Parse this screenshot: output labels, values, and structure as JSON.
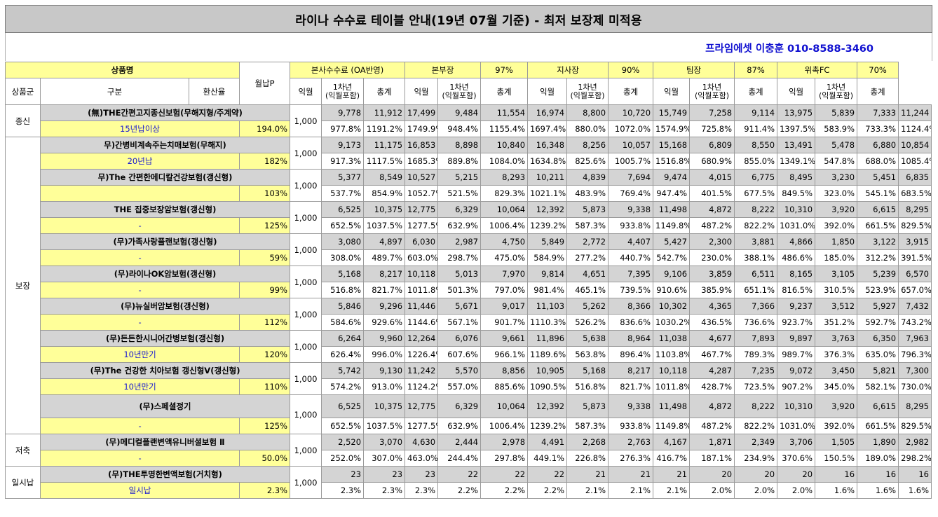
{
  "title": "라이나 수수료 테이블 안내(19년 07월 기준) - 최저 보장제 미적용",
  "contact": "프라임에셋 이충훈 010-8588-3460",
  "header": {
    "product_name": "상품명",
    "monthly": "월납P",
    "group_label": "상품군",
    "category": "구분",
    "conversion": "환산율",
    "groups": [
      {
        "name": "본사수수료 (OA반영)",
        "pct": ""
      },
      {
        "name": "본부장",
        "pct": "97%"
      },
      {
        "name": "지사장",
        "pct": "90%"
      },
      {
        "name": "팀장",
        "pct": "87%"
      },
      {
        "name": "위촉FC",
        "pct": "70%"
      }
    ],
    "sub": {
      "a": "익월",
      "b1": "1차년",
      "b2": "(익월포함)",
      "c": "총계"
    }
  },
  "rows": [
    {
      "group": "종신",
      "name": "(無)THE간편고지종신보험(무해지형/주계약)",
      "cat": "15년납이상",
      "rate": "194.0%",
      "monthly": "1,000",
      "vals": [
        "9,778",
        "11,912",
        "17,499",
        "9,484",
        "11,554",
        "16,974",
        "8,800",
        "10,720",
        "15,749",
        "7,258",
        "9,114",
        "13,975",
        "5,839",
        "7,333",
        "11,244"
      ],
      "pcts": [
        "977.8%",
        "1191.2%",
        "1749.9%",
        "948.4%",
        "1155.4%",
        "1697.4%",
        "880.0%",
        "1072.0%",
        "1574.9%",
        "725.8%",
        "911.4%",
        "1397.5%",
        "583.9%",
        "733.3%",
        "1124.4%"
      ]
    },
    {
      "group": "보장",
      "name": "무)간병비계속주는치매보험(무해지)",
      "cat": "20년납",
      "rate": "182%",
      "monthly": "1,000",
      "vals": [
        "9,173",
        "11,175",
        "16,853",
        "8,898",
        "10,840",
        "16,348",
        "8,256",
        "10,057",
        "15,168",
        "6,809",
        "8,550",
        "13,491",
        "5,478",
        "6,880",
        "10,854"
      ],
      "pcts": [
        "917.3%",
        "1117.5%",
        "1685.3%",
        "889.8%",
        "1084.0%",
        "1634.8%",
        "825.6%",
        "1005.7%",
        "1516.8%",
        "680.9%",
        "855.0%",
        "1349.1%",
        "547.8%",
        "688.0%",
        "1085.4%"
      ]
    },
    {
      "group": "",
      "name": "무)The 간편한메디칼건강보험(갱신형)",
      "cat": "",
      "rate": "103%",
      "monthly": "1,000",
      "vals": [
        "5,377",
        "8,549",
        "10,527",
        "5,215",
        "8,293",
        "10,211",
        "4,839",
        "7,694",
        "9,474",
        "4,015",
        "6,775",
        "8,495",
        "3,230",
        "5,451",
        "6,835"
      ],
      "pcts": [
        "537.7%",
        "854.9%",
        "1052.7%",
        "521.5%",
        "829.3%",
        "1021.1%",
        "483.9%",
        "769.4%",
        "947.4%",
        "401.5%",
        "677.5%",
        "849.5%",
        "323.0%",
        "545.1%",
        "683.5%"
      ]
    },
    {
      "group": "",
      "name": "THE 집중보장암보험(갱신형)",
      "cat": "-",
      "rate": "125%",
      "monthly": "1,000",
      "vals": [
        "6,525",
        "10,375",
        "12,775",
        "6,329",
        "10,064",
        "12,392",
        "5,873",
        "9,338",
        "11,498",
        "4,872",
        "8,222",
        "10,310",
        "3,920",
        "6,615",
        "8,295"
      ],
      "pcts": [
        "652.5%",
        "1037.5%",
        "1277.5%",
        "632.9%",
        "1006.4%",
        "1239.2%",
        "587.3%",
        "933.8%",
        "1149.8%",
        "487.2%",
        "822.2%",
        "1031.0%",
        "392.0%",
        "661.5%",
        "829.5%"
      ]
    },
    {
      "group": "",
      "name": "(무)가족사랑플랜보험(갱신형)",
      "cat": "-",
      "rate": "59%",
      "monthly": "1,000",
      "vals": [
        "3,080",
        "4,897",
        "6,030",
        "2,987",
        "4,750",
        "5,849",
        "2,772",
        "4,407",
        "5,427",
        "2,300",
        "3,881",
        "4,866",
        "1,850",
        "3,122",
        "3,915"
      ],
      "pcts": [
        "308.0%",
        "489.7%",
        "603.0%",
        "298.7%",
        "475.0%",
        "584.9%",
        "277.2%",
        "440.7%",
        "542.7%",
        "230.0%",
        "388.1%",
        "486.6%",
        "185.0%",
        "312.2%",
        "391.5%"
      ]
    },
    {
      "group": "",
      "name": "(무)라이나OK암보험(갱신형)",
      "cat": "-",
      "rate": "99%",
      "monthly": "1,000",
      "vals": [
        "5,168",
        "8,217",
        "10,118",
        "5,013",
        "7,970",
        "9,814",
        "4,651",
        "7,395",
        "9,106",
        "3,859",
        "6,511",
        "8,165",
        "3,105",
        "5,239",
        "6,570"
      ],
      "pcts": [
        "516.8%",
        "821.7%",
        "1011.8%",
        "501.3%",
        "797.0%",
        "981.4%",
        "465.1%",
        "739.5%",
        "910.6%",
        "385.9%",
        "651.1%",
        "816.5%",
        "310.5%",
        "523.9%",
        "657.0%"
      ]
    },
    {
      "group": "",
      "name": "(무)뉴실버암보험(갱신형)",
      "cat": "-",
      "rate": "112%",
      "monthly": "1,000",
      "vals": [
        "5,846",
        "9,296",
        "11,446",
        "5,671",
        "9,017",
        "11,103",
        "5,262",
        "8,366",
        "10,302",
        "4,365",
        "7,366",
        "9,237",
        "3,512",
        "5,927",
        "7,432"
      ],
      "pcts": [
        "584.6%",
        "929.6%",
        "1144.6%",
        "567.1%",
        "901.7%",
        "1110.3%",
        "526.2%",
        "836.6%",
        "1030.2%",
        "436.5%",
        "736.6%",
        "923.7%",
        "351.2%",
        "592.7%",
        "743.2%"
      ]
    },
    {
      "group": "",
      "name": "(무)든든한시니어간병보험(갱신형)",
      "cat": "10년만기",
      "rate": "120%",
      "monthly": "1,000",
      "vals": [
        "6,264",
        "9,960",
        "12,264",
        "6,076",
        "9,661",
        "11,896",
        "5,638",
        "8,964",
        "11,038",
        "4,677",
        "7,893",
        "9,897",
        "3,763",
        "6,350",
        "7,963"
      ],
      "pcts": [
        "626.4%",
        "996.0%",
        "1226.4%",
        "607.6%",
        "966.1%",
        "1189.6%",
        "563.8%",
        "896.4%",
        "1103.8%",
        "467.7%",
        "789.3%",
        "989.7%",
        "376.3%",
        "635.0%",
        "796.3%"
      ]
    },
    {
      "group": "",
      "name": "(무)The 건강한 치아보험 갱신형V(갱신형)",
      "cat": "10년만기",
      "rate": "110%",
      "monthly": "1,000",
      "vals": [
        "5,742",
        "9,130",
        "11,242",
        "5,570",
        "8,856",
        "10,905",
        "5,168",
        "8,217",
        "10,118",
        "4,287",
        "7,235",
        "9,072",
        "3,450",
        "5,821",
        "7,300"
      ],
      "pcts": [
        "574.2%",
        "913.0%",
        "1124.2%",
        "557.0%",
        "885.6%",
        "1090.5%",
        "516.8%",
        "821.7%",
        "1011.8%",
        "428.7%",
        "723.5%",
        "907.2%",
        "345.0%",
        "582.1%",
        "730.0%"
      ]
    },
    {
      "group": "",
      "name": "(무)스페셜정기",
      "cat": "-",
      "rate": "125%",
      "monthly": "1,000",
      "vals": [
        "6,525",
        "10,375",
        "12,775",
        "6,329",
        "10,064",
        "12,392",
        "5,873",
        "9,338",
        "11,498",
        "4,872",
        "8,222",
        "10,310",
        "3,920",
        "6,615",
        "8,295"
      ],
      "pcts": [
        "652.5%",
        "1037.5%",
        "1277.5%",
        "632.9%",
        "1006.4%",
        "1239.2%",
        "587.3%",
        "933.8%",
        "1149.8%",
        "487.2%",
        "822.2%",
        "1031.0%",
        "392.0%",
        "661.5%",
        "829.5%"
      ]
    },
    {
      "group": "저축",
      "name": "(무)메디컬플랜변액유니버셜보험 Ⅱ",
      "cat": "-",
      "rate": "50.0%",
      "monthly": "1,000",
      "vals": [
        "2,520",
        "3,070",
        "4,630",
        "2,444",
        "2,978",
        "4,491",
        "2,268",
        "2,763",
        "4,167",
        "1,871",
        "2,349",
        "3,706",
        "1,505",
        "1,890",
        "2,982"
      ],
      "pcts": [
        "252.0%",
        "307.0%",
        "463.0%",
        "244.4%",
        "297.8%",
        "449.1%",
        "226.8%",
        "276.3%",
        "416.7%",
        "187.1%",
        "234.9%",
        "370.6%",
        "150.5%",
        "189.0%",
        "298.2%"
      ]
    },
    {
      "group": "일시납",
      "name": "(무)THE투명한변액보험(거치형)",
      "cat": "일시납",
      "rate": "2.3%",
      "monthly": "1,000",
      "vals": [
        "23",
        "23",
        "23",
        "22",
        "22",
        "22",
        "21",
        "21",
        "21",
        "20",
        "20",
        "20",
        "16",
        "16",
        "16"
      ],
      "pcts": [
        "2.3%",
        "2.3%",
        "2.3%",
        "2.2%",
        "2.2%",
        "2.2%",
        "2.1%",
        "2.1%",
        "2.1%",
        "2.0%",
        "2.0%",
        "2.0%",
        "1.6%",
        "1.6%",
        "1.6%"
      ]
    }
  ]
}
